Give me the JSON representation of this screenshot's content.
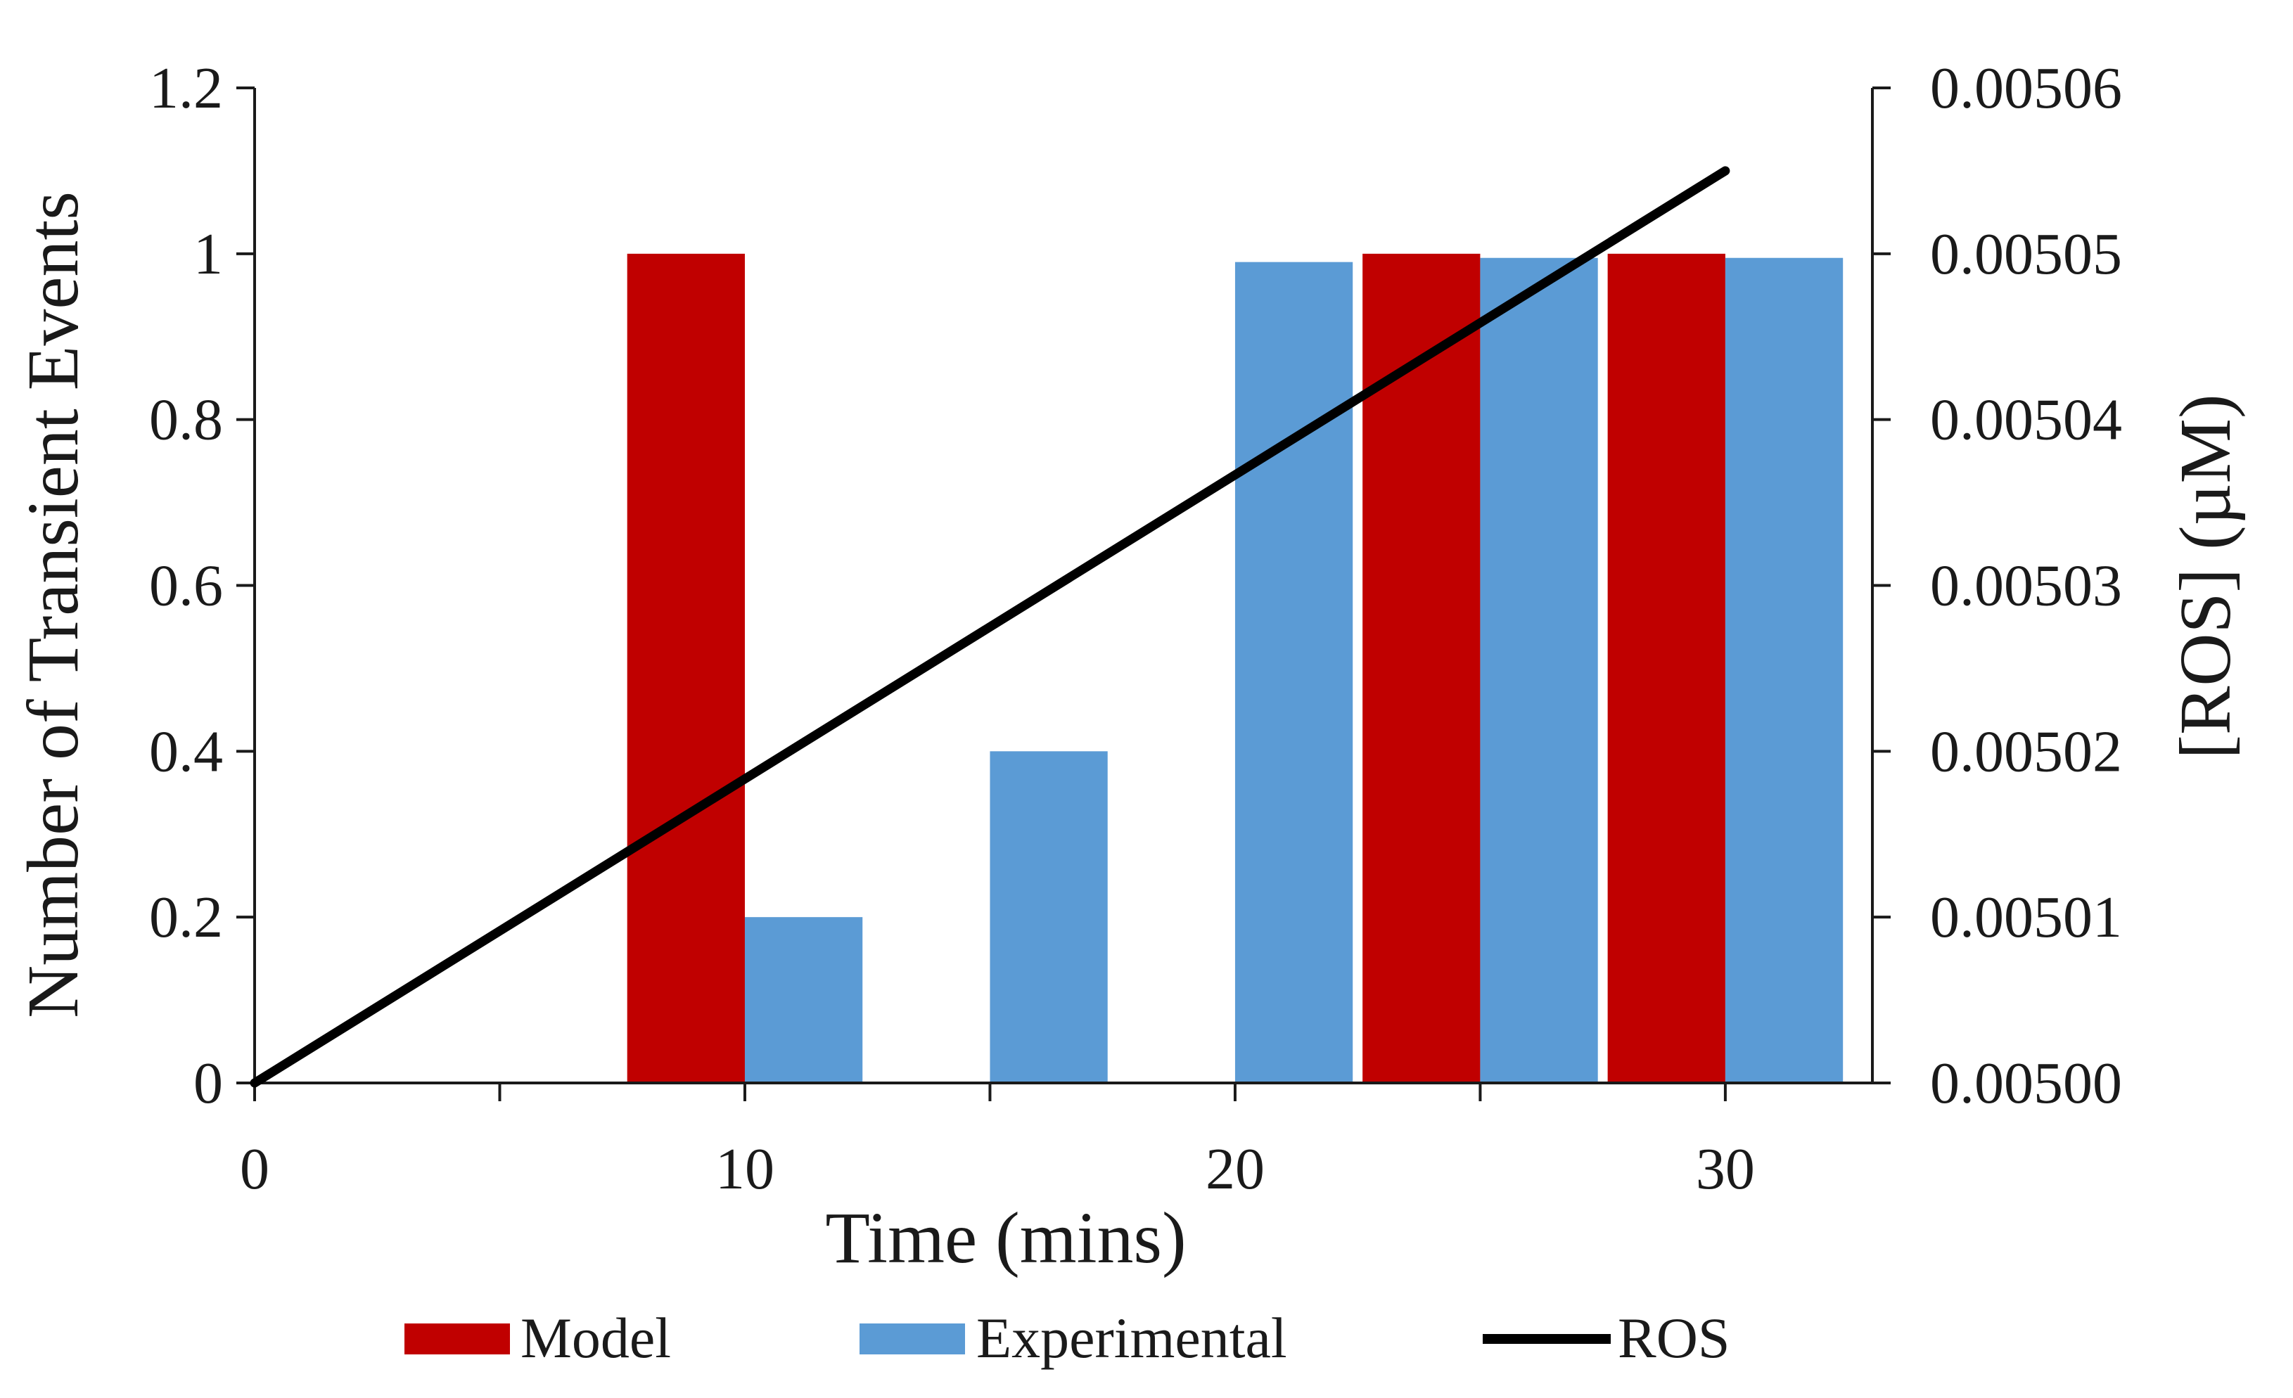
{
  "chart_data": {
    "type": "bar+line",
    "title": "",
    "xlabel": "Time (mins)",
    "ylabel": "Number of Transient Events",
    "y2label": "[ROS] (µM)",
    "xlim": [
      0,
      33
    ],
    "ylim": [
      0,
      1.2
    ],
    "y2lim": [
      0.005,
      0.00506
    ],
    "x_ticks": [
      0,
      10,
      20,
      30
    ],
    "x_minor_ticks": [
      5,
      15,
      25
    ],
    "y_ticks": [
      "0",
      "0.2",
      "0.4",
      "0.6",
      "0.8",
      "1",
      "1.2"
    ],
    "y2_ticks": [
      "0.00500",
      "0.00501",
      "0.00502",
      "0.00503",
      "0.00504",
      "0.00505",
      "0.00506"
    ],
    "bar_width": 2.4,
    "series": [
      {
        "name": "Model",
        "kind": "bar",
        "color": "#c00000",
        "points": [
          {
            "x": 8.8,
            "y": 1
          },
          {
            "x": 23.8,
            "y": 1
          },
          {
            "x": 28.8,
            "y": 1
          }
        ]
      },
      {
        "name": "Experimental",
        "kind": "bar",
        "color": "#5b9bd5",
        "points": [
          {
            "x": 11.2,
            "y": 0.2
          },
          {
            "x": 16.2,
            "y": 0.4
          },
          {
            "x": 21.2,
            "y": 0.99
          },
          {
            "x": 26.2,
            "y": 0.995
          },
          {
            "x": 31.2,
            "y": 0.995
          }
        ]
      },
      {
        "name": "ROS",
        "kind": "line",
        "axis": "right",
        "color": "#000000",
        "x": [
          0,
          30
        ],
        "y": [
          0.005,
          0.005055
        ]
      }
    ],
    "legend": {
      "position": "bottom",
      "entries": [
        "Model",
        "Experimental",
        "ROS"
      ]
    }
  }
}
